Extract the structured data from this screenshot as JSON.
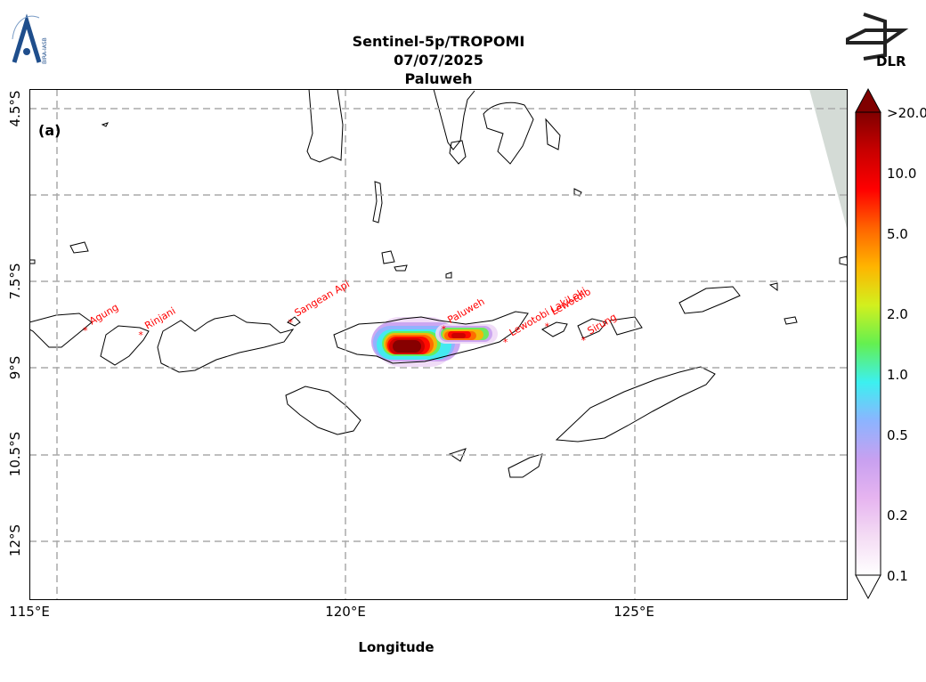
{
  "header": {
    "line1": "Sentinel-5p/TROPOMI",
    "line2": "07/07/2025",
    "line3": "Paluweh"
  },
  "logos": {
    "left": "BIRA-IASB",
    "right": "DLR"
  },
  "panel_label": "(a)",
  "axes": {
    "xlabel": "Longitude",
    "xticks": [
      "115°E",
      "120°E",
      "125°E"
    ],
    "yticks": [
      "4.5°S",
      "7.5°S",
      "9°S",
      "10.5°S",
      "12°S"
    ]
  },
  "volcanoes": [
    {
      "name": "Agung",
      "lon": 115.51,
      "lat": -8.34
    },
    {
      "name": "Rinjani",
      "lon": 116.47,
      "lat": -8.42
    },
    {
      "name": "Sangean Api",
      "lon": 119.06,
      "lat": -8.2
    },
    {
      "name": "Paluweh",
      "lon": 121.71,
      "lat": -8.32
    },
    {
      "name": "Lewotobi LakiLaki",
      "lon": 122.78,
      "lat": -8.54
    },
    {
      "name": "Lewotolo",
      "lon": 123.5,
      "lat": -8.27
    },
    {
      "name": "Sirung",
      "lon": 124.13,
      "lat": -8.51
    }
  ],
  "colorbar": {
    "ticks": [
      ">20.0",
      "10.0",
      "5.0",
      "2.0",
      "1.0",
      "0.5",
      "0.2",
      "0.1"
    ],
    "colors": [
      "#ffffff",
      "#f4dcf4",
      "#e6b4f0",
      "#c8a0f0",
      "#8cb4ff",
      "#3cf0f0",
      "#64f050",
      "#d2f01e",
      "#ffb400",
      "#ff6400",
      "#ff0000",
      "#c80000",
      "#800000"
    ]
  }
}
